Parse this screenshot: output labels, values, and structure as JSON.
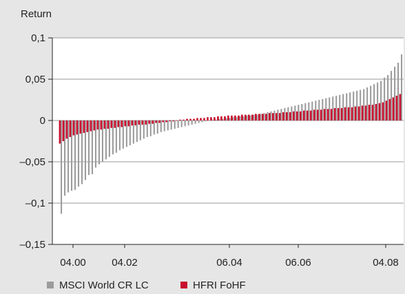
{
  "chart_data": {
    "type": "bar",
    "ylabel": "Return",
    "ylim": [
      -0.15,
      0.1
    ],
    "y_ticks": [
      "0,1",
      "0,05",
      "0",
      "–0,05",
      "–0,1",
      "–0,15"
    ],
    "y_tick_values": [
      0.1,
      0.05,
      0,
      -0.05,
      -0.1,
      -0.15
    ],
    "x_ticks": [
      "04.00",
      "04.02",
      "06.04",
      "06.06",
      "04.08"
    ],
    "grid": true,
    "legend": "bottom-left",
    "colors": {
      "msci": "#9c9c9c",
      "hfri": "#c8102e",
      "background": "#e6e6e6",
      "plot": "#ffffff",
      "grid": "#9a9a9a"
    },
    "series": [
      {
        "name": "MSCI World CR LC",
        "values": [
          -0.113,
          -0.091,
          -0.087,
          -0.085,
          -0.084,
          -0.08,
          -0.077,
          -0.072,
          -0.066,
          -0.065,
          -0.057,
          -0.053,
          -0.05,
          -0.047,
          -0.044,
          -0.041,
          -0.039,
          -0.036,
          -0.034,
          -0.032,
          -0.03,
          -0.028,
          -0.026,
          -0.024,
          -0.022,
          -0.02,
          -0.019,
          -0.017,
          -0.016,
          -0.014,
          -0.013,
          -0.012,
          -0.011,
          -0.01,
          -0.009,
          -0.008,
          -0.007,
          -0.006,
          -0.005,
          -0.004,
          -0.003,
          -0.002,
          -0.001,
          0.0,
          0.001,
          0.001,
          0.002,
          0.002,
          0.003,
          0.003,
          0.004,
          0.004,
          0.005,
          0.005,
          0.006,
          0.006,
          0.007,
          0.007,
          0.008,
          0.009,
          0.01,
          0.011,
          0.012,
          0.013,
          0.014,
          0.015,
          0.016,
          0.017,
          0.018,
          0.019,
          0.02,
          0.021,
          0.022,
          0.023,
          0.024,
          0.025,
          0.026,
          0.027,
          0.028,
          0.029,
          0.03,
          0.031,
          0.032,
          0.033,
          0.034,
          0.035,
          0.036,
          0.037,
          0.038,
          0.04,
          0.042,
          0.044,
          0.046,
          0.048,
          0.052,
          0.055,
          0.06,
          0.065,
          0.07,
          0.08
        ]
      },
      {
        "name": "HFRI FoHF",
        "values": [
          -0.028,
          -0.025,
          -0.022,
          -0.02,
          -0.018,
          -0.017,
          -0.016,
          -0.015,
          -0.014,
          -0.013,
          -0.012,
          -0.011,
          -0.011,
          -0.01,
          -0.01,
          -0.009,
          -0.009,
          -0.008,
          -0.008,
          -0.007,
          -0.007,
          -0.006,
          -0.006,
          -0.005,
          -0.005,
          -0.005,
          -0.004,
          -0.004,
          -0.003,
          -0.003,
          -0.002,
          -0.002,
          -0.001,
          -0.001,
          0.0,
          0.001,
          0.001,
          0.002,
          0.002,
          0.002,
          0.003,
          0.003,
          0.003,
          0.004,
          0.004,
          0.004,
          0.005,
          0.005,
          0.005,
          0.006,
          0.006,
          0.006,
          0.006,
          0.007,
          0.007,
          0.007,
          0.007,
          0.008,
          0.008,
          0.008,
          0.008,
          0.009,
          0.009,
          0.009,
          0.009,
          0.01,
          0.01,
          0.01,
          0.011,
          0.011,
          0.011,
          0.012,
          0.012,
          0.012,
          0.013,
          0.013,
          0.013,
          0.014,
          0.014,
          0.014,
          0.015,
          0.015,
          0.015,
          0.016,
          0.016,
          0.016,
          0.017,
          0.017,
          0.018,
          0.018,
          0.019,
          0.019,
          0.02,
          0.021,
          0.022,
          0.024,
          0.026,
          0.028,
          0.03,
          0.032
        ]
      }
    ]
  }
}
